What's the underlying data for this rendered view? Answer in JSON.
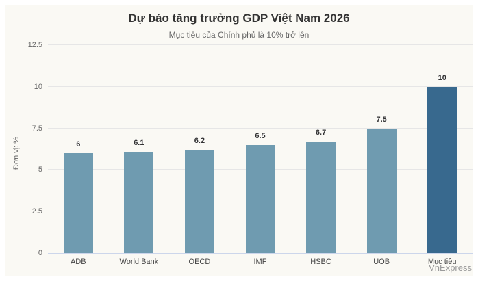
{
  "chart_data": {
    "type": "bar",
    "title": "Dự báo tăng trưởng GDP Việt Nam 2026",
    "subtitle": "Mục tiêu của Chính phủ là 10% trở lên",
    "categories": [
      "ADB",
      "World Bank",
      "OECD",
      "IMF",
      "HSBC",
      "UOB",
      "Mục tiêu"
    ],
    "values": [
      6,
      6.1,
      6.2,
      6.5,
      6.7,
      7.5,
      10
    ],
    "data_labels": [
      "6",
      "6.1",
      "6.2",
      "6.5",
      "6.7",
      "7.5",
      "10"
    ],
    "xlabel": "",
    "ylabel": "Đơn vị: %",
    "ylim": [
      0,
      12.5
    ],
    "y_ticks": [
      0,
      2.5,
      5,
      7.5,
      10,
      12.5
    ],
    "y_tick_labels": [
      "0",
      "2.5",
      "5",
      "7.5",
      "10",
      "12.5"
    ],
    "grid": true,
    "legend": false,
    "highlight_index": 6,
    "colors": {
      "bar": "#6F9BB0",
      "highlight": "#38698E",
      "background": "#FAF9F4",
      "page_background": "#FFFFFF",
      "gridline": "#E6E6E6",
      "axis_line": "#CCD6EB",
      "title_text": "#333333",
      "subtitle_text": "#666666",
      "tick_text": "#666666"
    }
  },
  "credits": {
    "label": "VnExpress"
  }
}
